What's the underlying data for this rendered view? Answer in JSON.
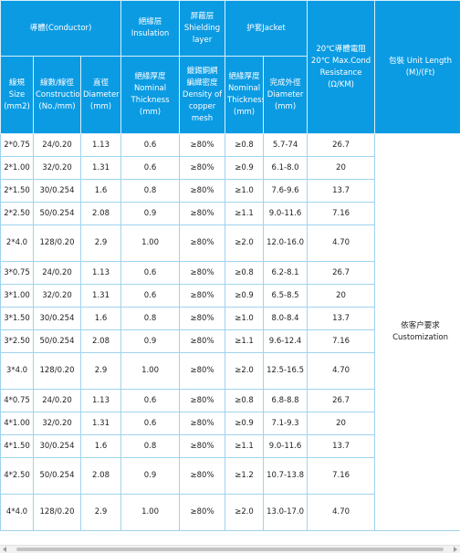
{
  "colors": {
    "header_bg": "#0b9be3",
    "header_text": "#ffffff",
    "grid": "#9fd3ee"
  },
  "header_top": {
    "conductor": "導體(Conductor)",
    "insulation": "絕緣层 Insulation",
    "shielding": "屏蔽层 Shielding layer",
    "jacket": "护套Jacket",
    "resistance": "20℃導體電阻 20℃ Max.Cond Resistance (Ω/KM)",
    "unit_length": "包裝 Unit Length (M)/(Ft)"
  },
  "header_sub": {
    "size": "線規 Size (mm2)",
    "construction": "線數/線徑 Construction (No./mm)",
    "diameter": "直徑 Diameter (mm)",
    "ins_thickness": "絕緣厚度 Nominal Thickness (mm)",
    "density": "鍍錫銅網 編織密度 Density of copper mesh",
    "jacket_thickness": "絕緣厚度 Nominal Thickness (mm)",
    "outer_diameter": "完成外徑 Diameter (mm)"
  },
  "unit_length_value": "依客户要求 Customization",
  "rows": [
    [
      "2*0.75",
      "24/0.20",
      "1.13",
      "0.6",
      "≥80%",
      "≥0.8",
      "5.7-74",
      "26.7"
    ],
    [
      "2*1.00",
      "32/0.20",
      "1.31",
      "0.6",
      "≥80%",
      "≥0.9",
      "6.1-8.0",
      "20"
    ],
    [
      "2*1.50",
      "30/0.254",
      "1.6",
      "0.8",
      "≥80%",
      "≥1.0",
      "7.6-9.6",
      "13.7"
    ],
    [
      "2*2.50",
      "50/0.254",
      "2.08",
      "0.9",
      "≥80%",
      "≥1.1",
      "9.0-11.6",
      "7.16"
    ],
    [
      "2*4.0",
      "128/0.20",
      "2.9",
      "1.00",
      "≥80%",
      "≥2.0",
      "12.0-16.0",
      "4.70"
    ],
    [
      "3*0.75",
      "24/0.20",
      "1.13",
      "0.6",
      "≥80%",
      "≥0.8",
      "6.2-8.1",
      "26.7"
    ],
    [
      "3*1.00",
      "32/0.20",
      "1.31",
      "0.6",
      "≥80%",
      "≥0.9",
      "6.5-8.5",
      "20"
    ],
    [
      "3*1.50",
      "30/0.254",
      "1.6",
      "0.8",
      "≥80%",
      "≥1.0",
      "8.0-8.4",
      "13.7"
    ],
    [
      "3*2.50",
      "50/0.254",
      "2.08",
      "0.9",
      "≥80%",
      "≥1.1",
      "9.6-12.4",
      "7.16"
    ],
    [
      "3*4.0",
      "128/0.20",
      "2.9",
      "1.00",
      "≥80%",
      "≥2.0",
      "12.5-16.5",
      "4.70"
    ],
    [
      "4*0.75",
      "24/0.20",
      "1.13",
      "0.6",
      "≥80%",
      "≥0.8",
      "6.8-8.8",
      "26.7"
    ],
    [
      "4*1.00",
      "32/0.20",
      "1.31",
      "0.6",
      "≥80%",
      "≥0.9",
      "7.1-9.3",
      "20"
    ],
    [
      "4*1.50",
      "30/0.254",
      "1.6",
      "0.8",
      "≥80%",
      "≥1.1",
      "9.0-11.6",
      "13.7"
    ],
    [
      "4*2.50",
      "50/0.254",
      "2.08",
      "0.9",
      "≥80%",
      "≥1.2",
      "10.7-13.8",
      "7.16"
    ],
    [
      "4*4.0",
      "128/0.20",
      "2.9",
      "1.00",
      "≥80%",
      "≥2.0",
      "13.0-17.0",
      "4.70"
    ]
  ],
  "tall_rows": [
    4,
    9,
    13,
    14
  ]
}
